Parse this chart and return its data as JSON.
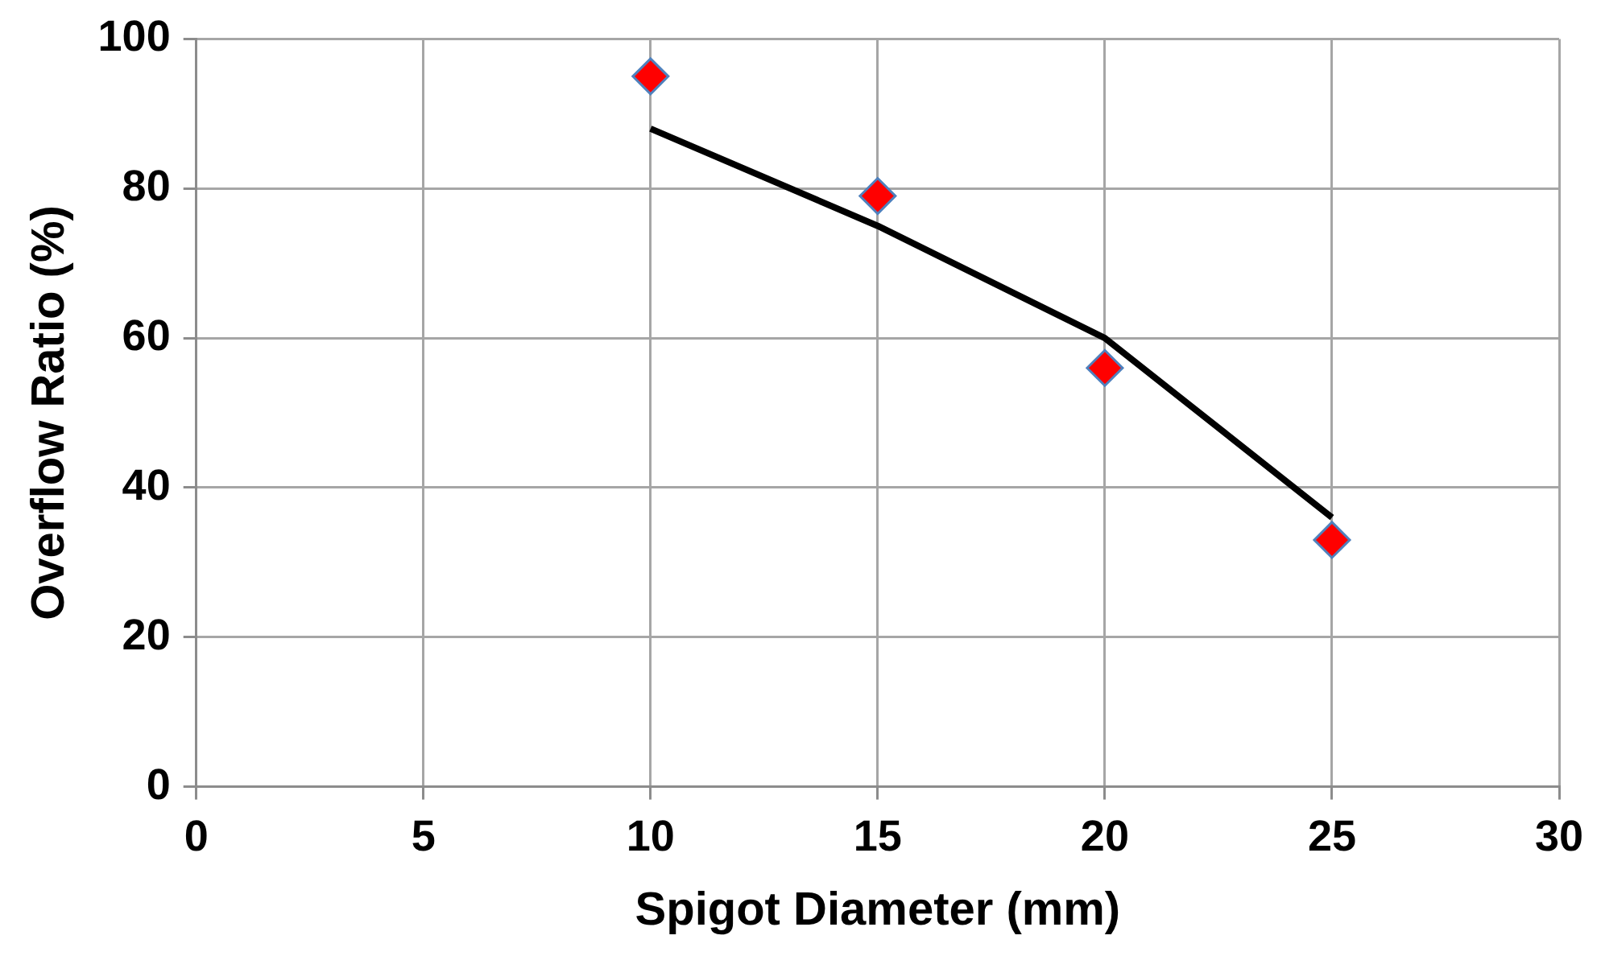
{
  "chart_data": {
    "type": "scatter",
    "xlabel": "Spigot Diameter (mm)",
    "ylabel": "Overflow Ratio (%)",
    "xlim": [
      0,
      30
    ],
    "xticks": [
      0,
      5,
      10,
      15,
      20,
      25,
      30
    ],
    "ylim": [
      0,
      100
    ],
    "yticks": [
      0,
      20,
      40,
      60,
      80,
      100
    ],
    "grid": true,
    "legend": false,
    "series": [
      {
        "type": "scatter",
        "color": "#ff0000",
        "marker": "diamond",
        "x": [
          10,
          15,
          20,
          25
        ],
        "values": [
          95,
          79,
          56,
          33
        ]
      },
      {
        "type": "line",
        "color": "#000000",
        "marker": "none",
        "line_style": "solid",
        "x": [
          10,
          15,
          20,
          25
        ],
        "values": [
          88,
          75,
          60,
          36
        ]
      }
    ]
  }
}
